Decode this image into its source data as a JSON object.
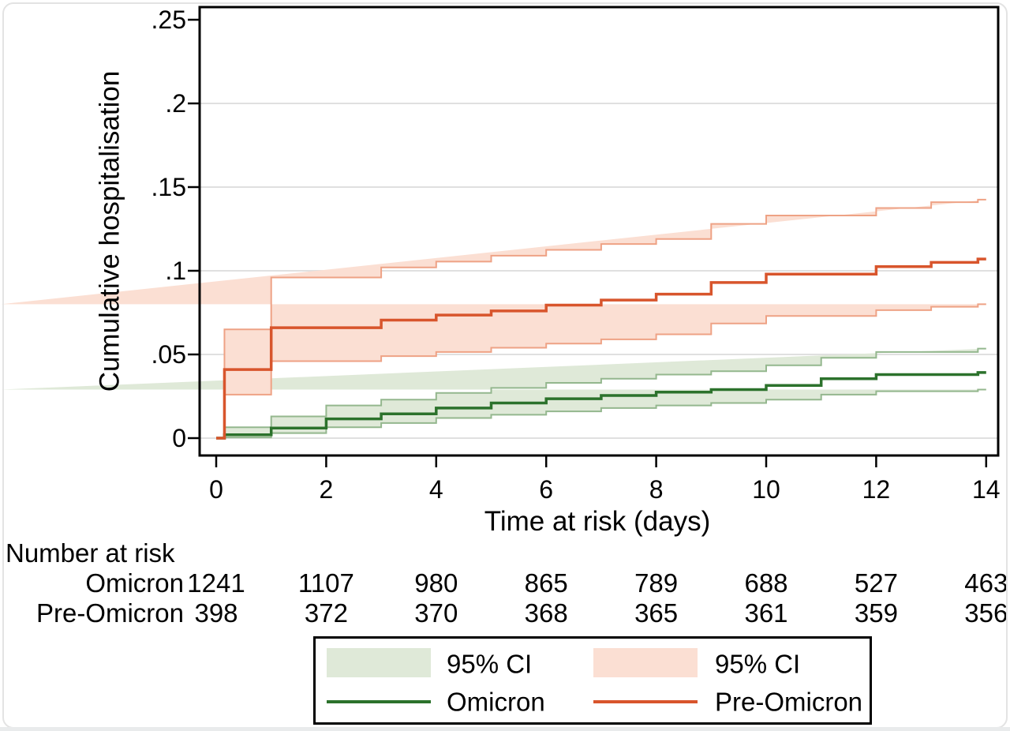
{
  "chart_data": {
    "type": "line",
    "subtype": "kaplan-meier-step-with-ci",
    "title": "",
    "xlabel": "Time at risk (days)",
    "ylabel": "Cumulative hospitalisation",
    "xlim": [
      -0.3,
      14.22
    ],
    "ylim": [
      -0.01,
      0.2645
    ],
    "grid": "horizontal-only",
    "grid_values": [
      0,
      0.05,
      0.1,
      0.15,
      0.2
    ],
    "x_ticks": [
      {
        "v": 0,
        "label": "0"
      },
      {
        "v": 2,
        "label": "2"
      },
      {
        "v": 4,
        "label": "4"
      },
      {
        "v": 6,
        "label": "6"
      },
      {
        "v": 8,
        "label": "8"
      },
      {
        "v": 10,
        "label": "10"
      },
      {
        "v": 12,
        "label": "12"
      },
      {
        "v": 14,
        "label": "14"
      }
    ],
    "y_ticks": [
      {
        "v": 0,
        "label": "0"
      },
      {
        "v": 0.05,
        "label": ".05"
      },
      {
        "v": 0.1,
        "label": ".1"
      },
      {
        "v": 0.15,
        "label": ".15"
      },
      {
        "v": 0.2,
        "label": ".2"
      },
      {
        "v": 0.25,
        "label": ".25"
      }
    ],
    "series": [
      {
        "name": "Omicron",
        "line_color": "#2c722c",
        "ci_fill": "#dfe9d8",
        "ci_edge": "#94b78e",
        "end_t": 14,
        "steps": [
          [
            0,
            0,
            0,
            0
          ],
          [
            0.15,
            0.002,
            0.0004,
            0.0065
          ],
          [
            1,
            0.006,
            0.003,
            0.013
          ],
          [
            2,
            0.0115,
            0.0065,
            0.0195
          ],
          [
            3,
            0.0145,
            0.009,
            0.023
          ],
          [
            4,
            0.018,
            0.012,
            0.027
          ],
          [
            5,
            0.021,
            0.014,
            0.03
          ],
          [
            6,
            0.0235,
            0.016,
            0.033
          ],
          [
            7,
            0.0255,
            0.018,
            0.0355
          ],
          [
            8,
            0.0275,
            0.0195,
            0.038
          ],
          [
            9,
            0.029,
            0.021,
            0.04
          ],
          [
            10,
            0.0315,
            0.023,
            0.0435
          ],
          [
            11,
            0.0355,
            0.026,
            0.048
          ],
          [
            12,
            0.038,
            0.028,
            0.0515
          ],
          [
            13.85,
            0.0392,
            0.029,
            0.0535
          ]
        ]
      },
      {
        "name": "Pre-Omicron",
        "line_color": "#d8552c",
        "ci_fill": "#fbdfd3",
        "ci_edge": "#eea285",
        "end_t": 14,
        "steps": [
          [
            0,
            0,
            0,
            0
          ],
          [
            0.15,
            0.041,
            0.026,
            0.065
          ],
          [
            1,
            0.066,
            0.046,
            0.096
          ],
          [
            3,
            0.0705,
            0.049,
            0.102
          ],
          [
            4,
            0.0735,
            0.0515,
            0.1055
          ],
          [
            5,
            0.076,
            0.054,
            0.109
          ],
          [
            6,
            0.0795,
            0.0565,
            0.1125
          ],
          [
            7,
            0.0825,
            0.059,
            0.116
          ],
          [
            8,
            0.086,
            0.062,
            0.119
          ],
          [
            9,
            0.093,
            0.0685,
            0.128
          ],
          [
            10,
            0.098,
            0.073,
            0.133
          ],
          [
            12,
            0.1025,
            0.0765,
            0.1375
          ],
          [
            13,
            0.105,
            0.0785,
            0.141
          ],
          [
            13.85,
            0.107,
            0.08,
            0.1425
          ]
        ]
      }
    ]
  },
  "at_risk": {
    "title": "Number at risk",
    "times": [
      0,
      2,
      4,
      6,
      8,
      10,
      12,
      14
    ],
    "rows": [
      {
        "label": "Omicron",
        "values": [
          "1241",
          "1107",
          "980",
          "865",
          "789",
          "688",
          "527",
          "463"
        ]
      },
      {
        "label": "Pre-Omicron",
        "values": [
          "398",
          "372",
          "370",
          "368",
          "365",
          "361",
          "359",
          "356"
        ]
      }
    ]
  },
  "legend": {
    "items": [
      {
        "swatch": "fill",
        "color": "#dfe9d8",
        "label": "95% CI"
      },
      {
        "swatch": "fill",
        "color": "#fbdfd3",
        "label": "95% CI"
      },
      {
        "swatch": "line",
        "color": "#2c722c",
        "label": "Omicron"
      },
      {
        "swatch": "line",
        "color": "#d8552c",
        "label": "Pre-Omicron"
      }
    ]
  },
  "colors": {
    "axis": "#000000",
    "gridline": "#e0e0e0",
    "outer_border": "#e3e3e3"
  }
}
